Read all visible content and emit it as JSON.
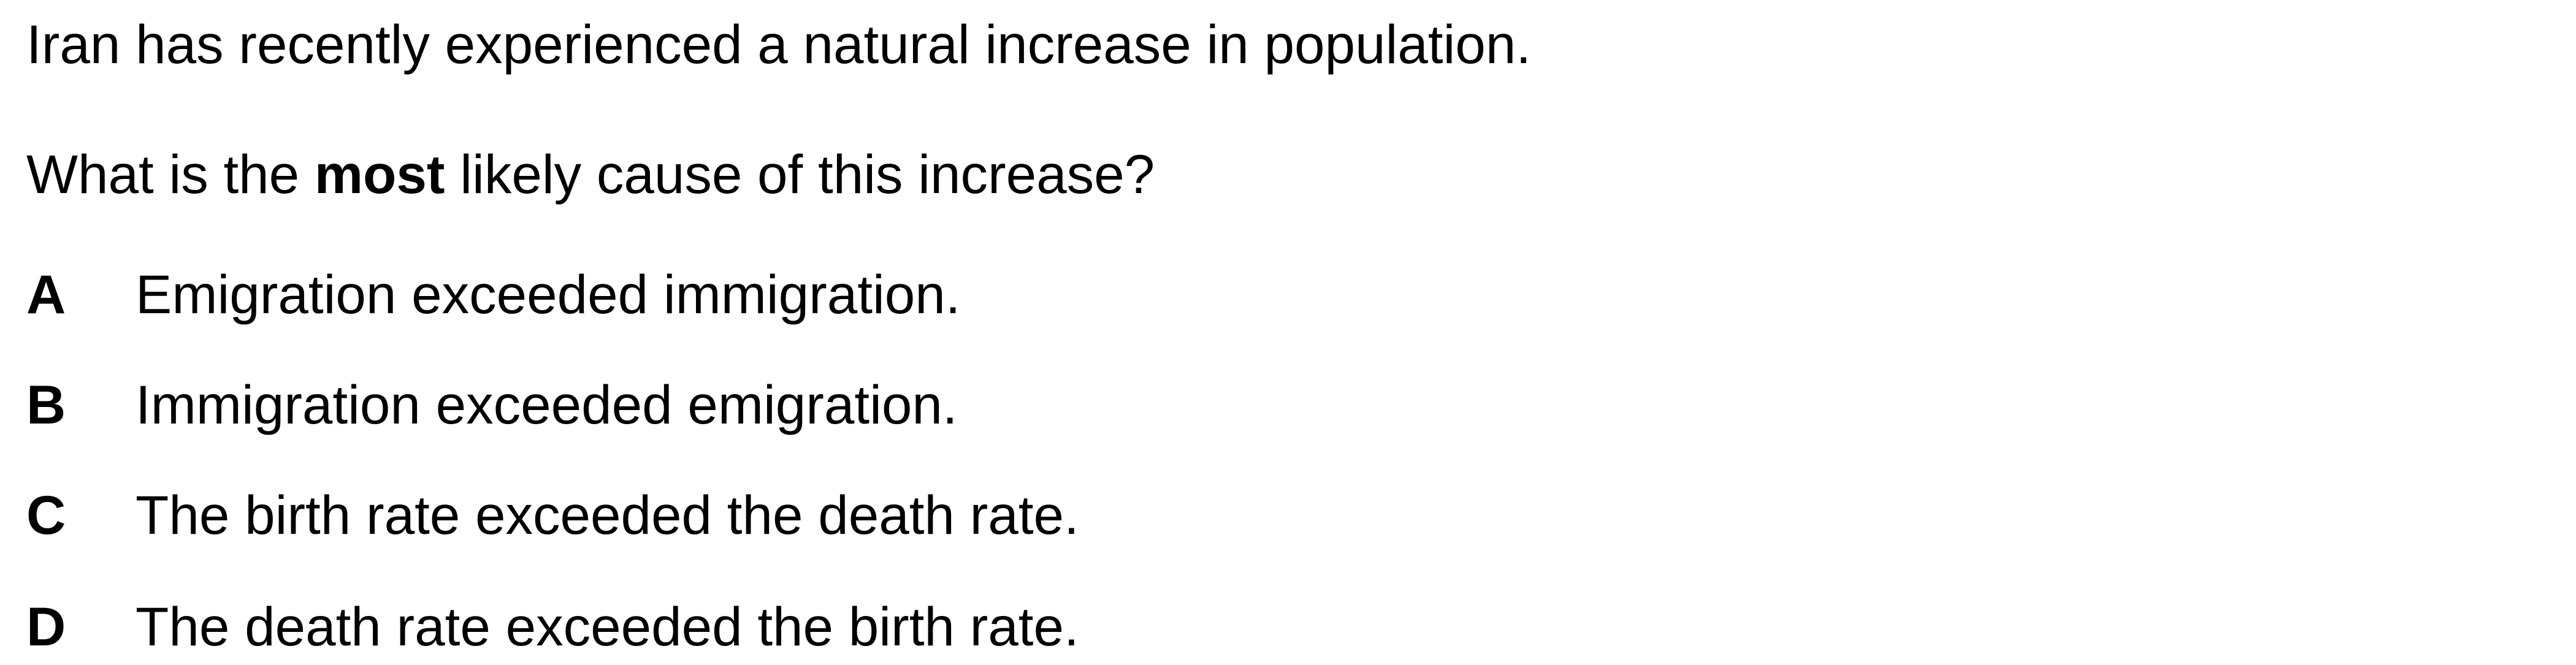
{
  "stem": "Iran has recently experienced a natural increase in population.",
  "question": {
    "before": "What is the ",
    "emphasis": "most",
    "after": " likely cause of this increase?"
  },
  "options": [
    {
      "letter": "A",
      "text": "Emigration exceeded immigration."
    },
    {
      "letter": "B",
      "text": "Immigration exceeded emigration."
    },
    {
      "letter": "C",
      "text": "The birth rate exceeded the death rate."
    },
    {
      "letter": "D",
      "text": "The death rate exceeded the birth rate."
    }
  ]
}
